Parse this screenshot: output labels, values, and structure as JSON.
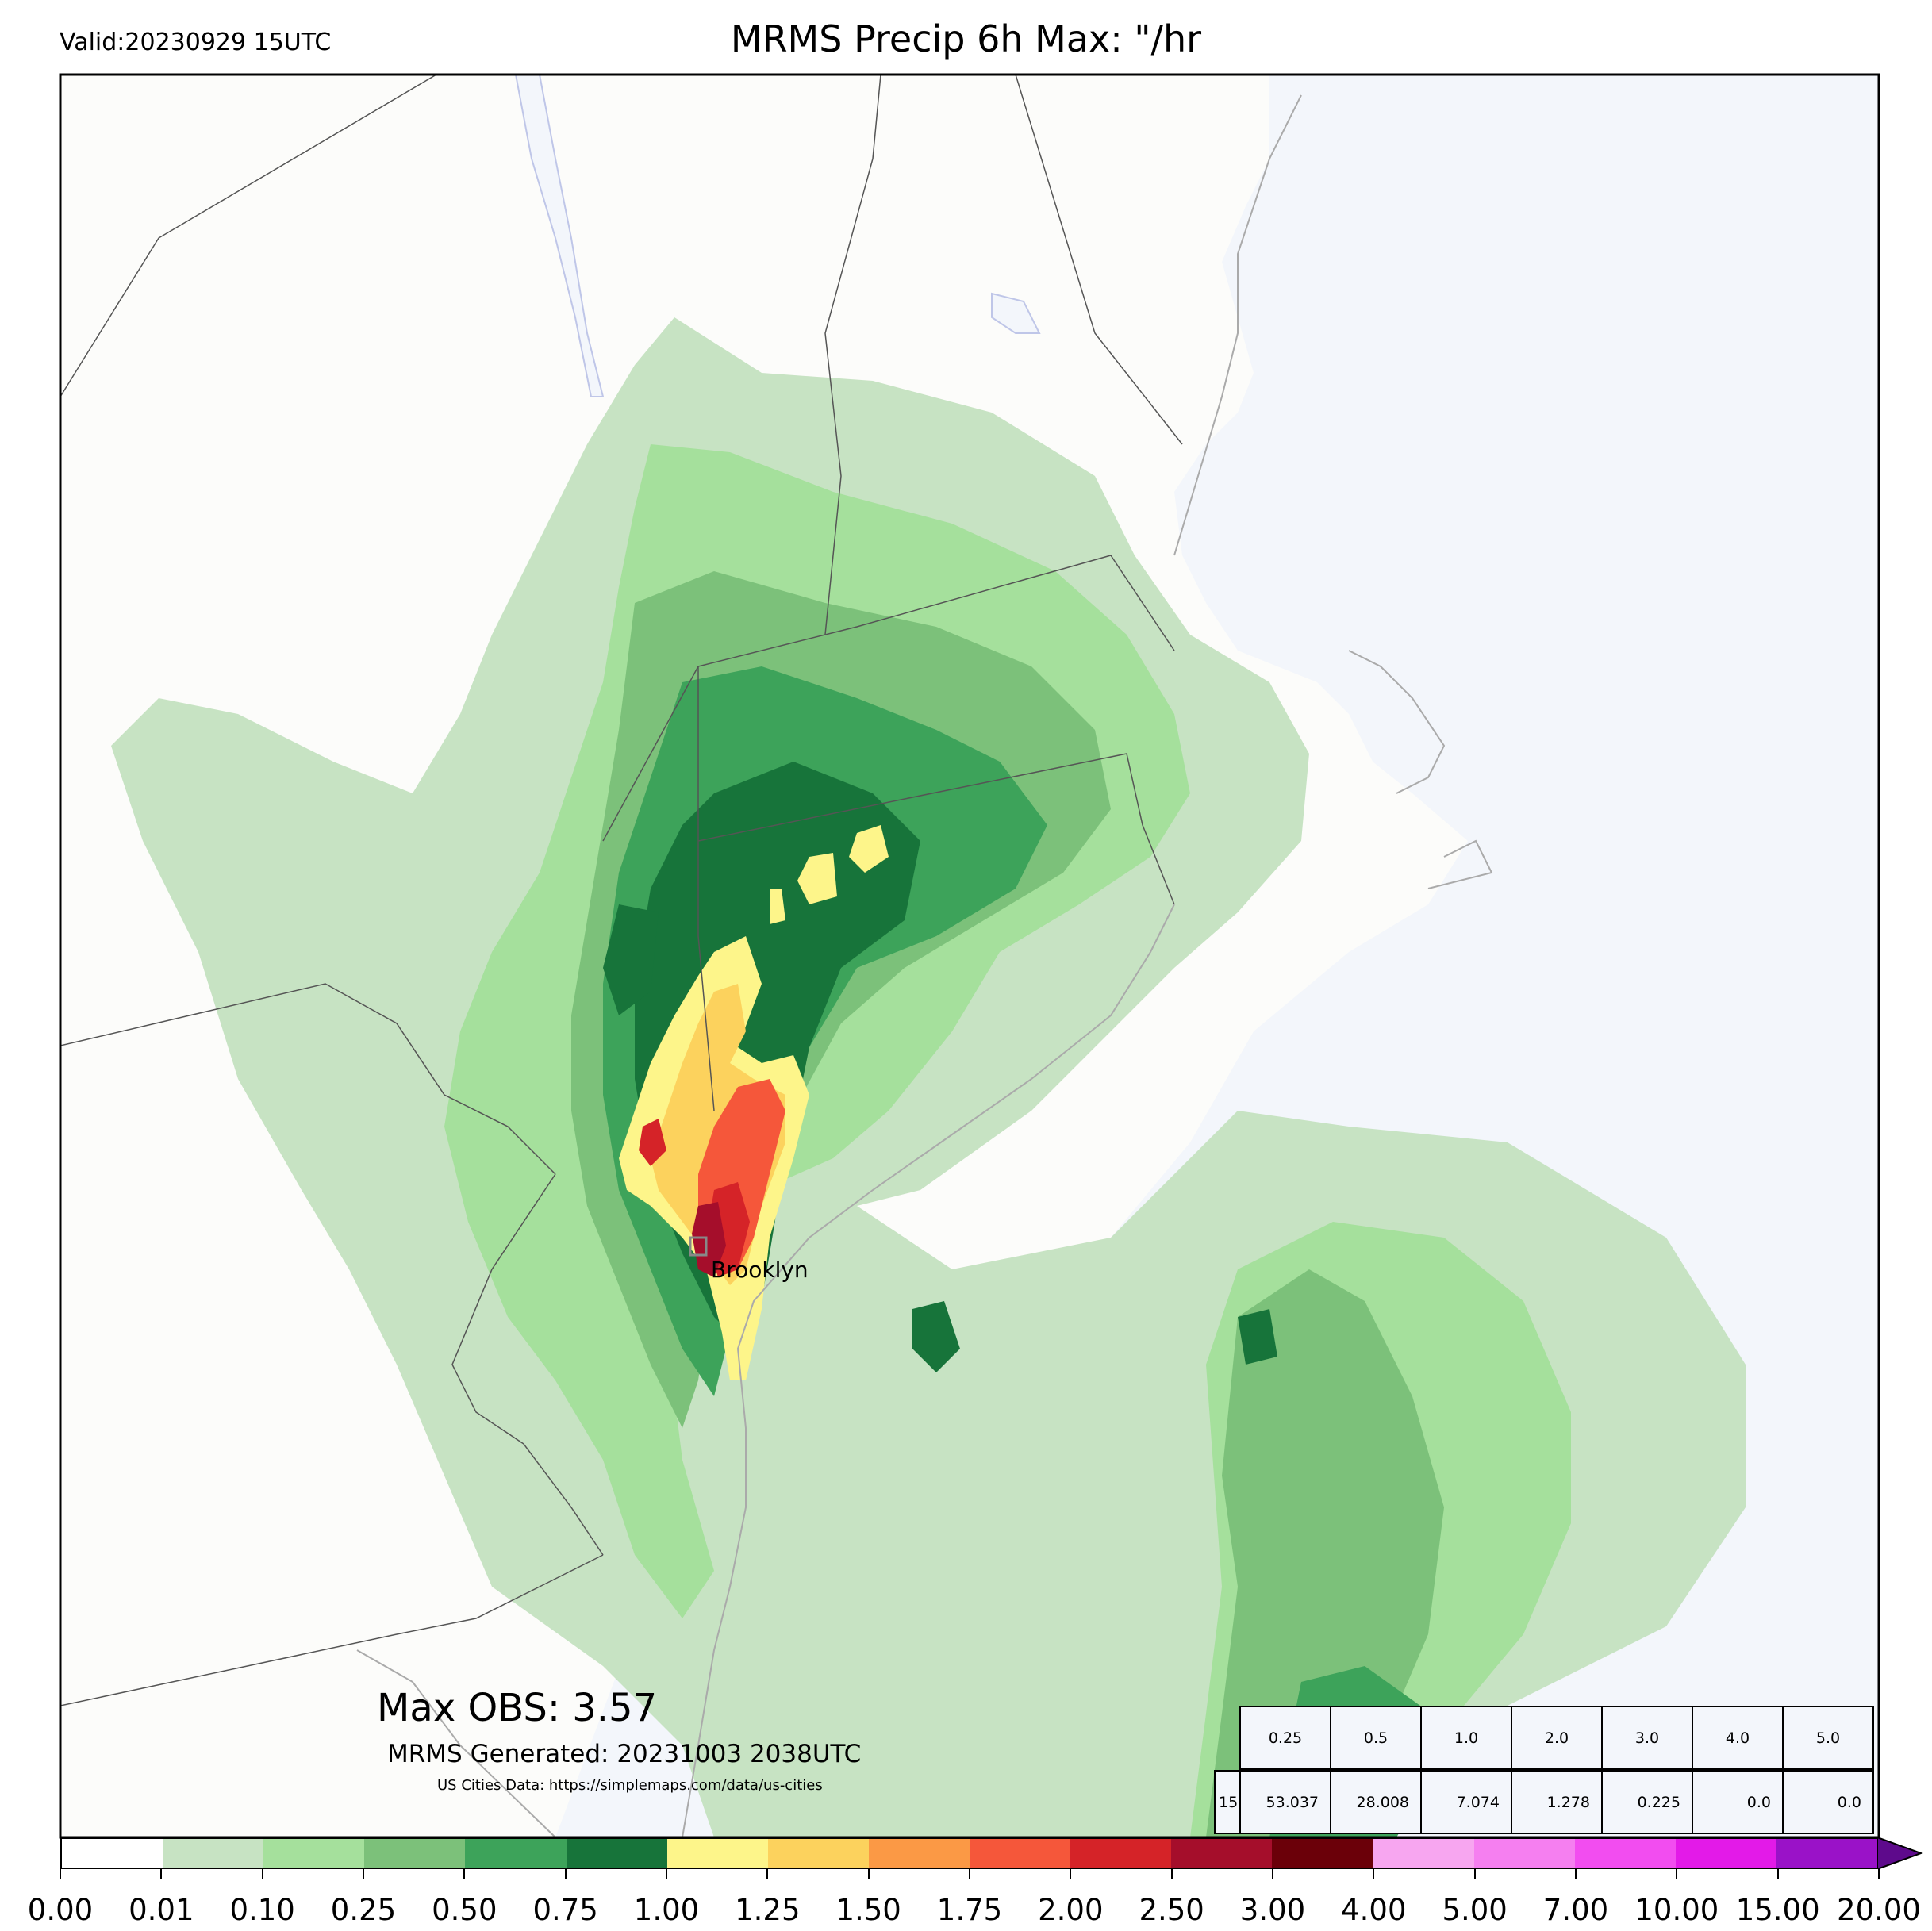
{
  "header": {
    "valid": "Valid:20230929 15UTC",
    "title": "MRMS Precip 6h Max: \"/hr"
  },
  "map": {
    "city_label": "Brooklyn",
    "land_color": "#fcfcfa",
    "water_color": "#f3f6fb",
    "border_color": "#555555"
  },
  "annotations": {
    "max_obs": "Max OBS: 3.57",
    "generated": "MRMS Generated: 20231003 2038UTC",
    "cities_source": "US Cities Data: https://simplemaps.com/data/us-cities"
  },
  "stats_table": {
    "thresholds": [
      "0.25",
      "0.5",
      "1.0",
      "2.0",
      "3.0",
      "4.0",
      "5.0"
    ],
    "row_label": "15",
    "values": [
      "53.037",
      "28.008",
      "7.074",
      "1.278",
      "0.225",
      "0.0",
      "0.0"
    ]
  },
  "colorbar": {
    "ticks": [
      "0.00",
      "0.01",
      "0.10",
      "0.25",
      "0.50",
      "0.75",
      "1.00",
      "1.25",
      "1.50",
      "1.75",
      "2.00",
      "2.50",
      "3.00",
      "4.00",
      "5.00",
      "7.00",
      "10.00",
      "15.00",
      "20.00"
    ],
    "colors": [
      "#ffffff",
      "#c7e3c3",
      "#a5e09c",
      "#7cc17a",
      "#3da35a",
      "#17743a",
      "#fdf58a",
      "#fcd25d",
      "#fb9945",
      "#f5573a",
      "#d52328",
      "#a50e2b",
      "#6b0009",
      "#f7a6f0",
      "#f57ff0",
      "#f24df0",
      "#e31ae8",
      "#9a12c8"
    ],
    "extend_color": "#5e0a8c"
  }
}
